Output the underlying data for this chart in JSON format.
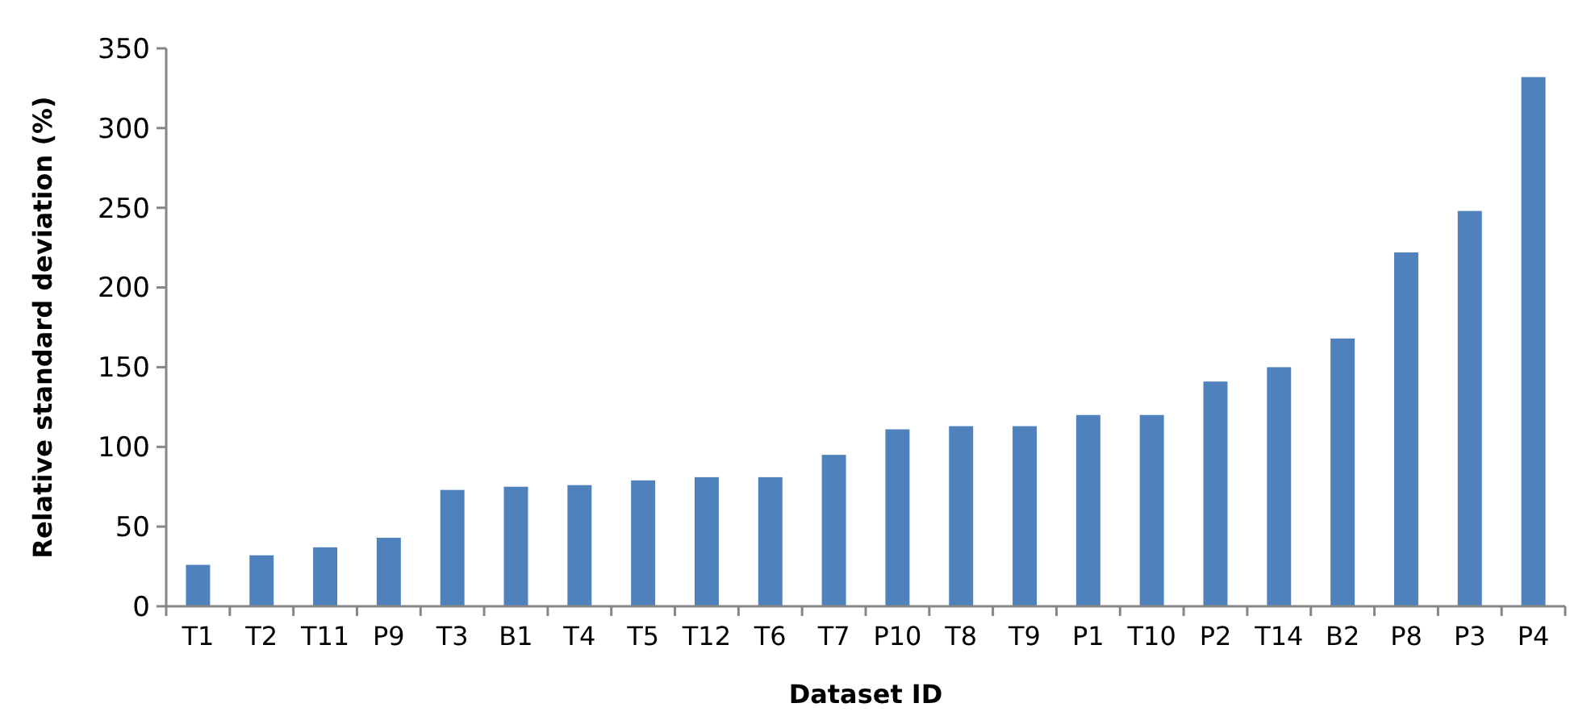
{
  "chart_data": {
    "type": "bar",
    "xlabel": "Dataset ID",
    "ylabel": "Relative standard deviation (%)",
    "categories": [
      "T1",
      "T2",
      "T11",
      "P9",
      "T3",
      "B1",
      "T4",
      "T5",
      "T12",
      "T6",
      "T7",
      "P10",
      "T8",
      "T9",
      "P1",
      "T10",
      "P2",
      "T14",
      "B2",
      "P8",
      "P3",
      "P4"
    ],
    "values": [
      26,
      32,
      37,
      43,
      73,
      75,
      76,
      79,
      81,
      81,
      95,
      111,
      113,
      113,
      120,
      120,
      141,
      150,
      168,
      222,
      248,
      332
    ],
    "color": "#4f81bd",
    "ylim": [
      0,
      350
    ],
    "yticks": [
      0,
      50,
      100,
      150,
      200,
      250,
      300,
      350
    ],
    "grid": false
  }
}
